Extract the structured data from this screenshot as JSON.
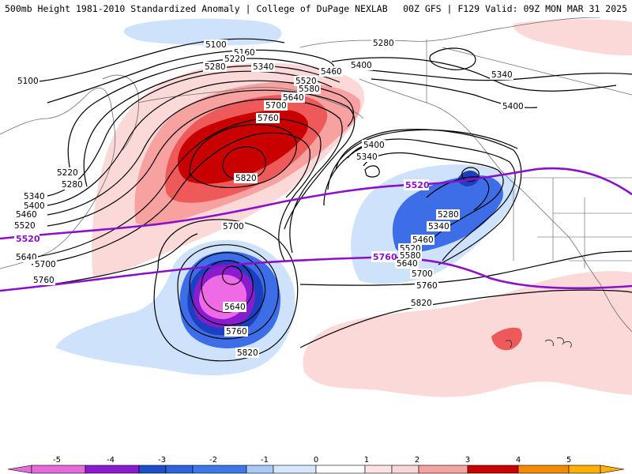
{
  "header": {
    "left_title": "500mb Height 1981-2010 Standardized Anomaly | College of DuPage NEXLAB",
    "right_title": "00Z GFS | F129 Valid: 09Z MON MAR 31 2025"
  },
  "contour_labels": [
    {
      "text": "5100",
      "id": "c5100-a"
    },
    {
      "text": "5100",
      "id": "c5100-b"
    },
    {
      "text": "5160",
      "id": "c5160"
    },
    {
      "text": "5220",
      "id": "c5220-a"
    },
    {
      "text": "5280",
      "id": "c5280-a"
    },
    {
      "text": "5340",
      "id": "c5340-a"
    },
    {
      "text": "5280",
      "id": "c5280-b"
    },
    {
      "text": "5400",
      "id": "c5400-a"
    },
    {
      "text": "5460",
      "id": "c5460-a"
    },
    {
      "text": "5520",
      "id": "c5520-a"
    },
    {
      "text": "5580",
      "id": "c5580-a"
    },
    {
      "text": "5640",
      "id": "c5640-a"
    },
    {
      "text": "5700",
      "id": "c5700-a"
    },
    {
      "text": "5760",
      "id": "c5760-a"
    },
    {
      "text": "5820",
      "id": "c5820-a"
    },
    {
      "text": "5340",
      "id": "c5340-b"
    },
    {
      "text": "5400",
      "id": "c5400-b"
    },
    {
      "text": "5400",
      "id": "c5400-c"
    },
    {
      "text": "5220",
      "id": "c5220-b"
    },
    {
      "text": "5280",
      "id": "c5280-c"
    },
    {
      "text": "5340",
      "id": "c5340-c"
    },
    {
      "text": "5400",
      "id": "c5400-d"
    },
    {
      "text": "5460",
      "id": "c5460-b"
    },
    {
      "text": "5520",
      "id": "c5520-b"
    },
    {
      "text": "5640",
      "id": "c5640-b"
    },
    {
      "text": "5700",
      "id": "c5700-b"
    },
    {
      "text": "5760",
      "id": "c5760-b"
    },
    {
      "text": "5700",
      "id": "c5700-c"
    },
    {
      "text": "5640",
      "id": "c5640-c"
    },
    {
      "text": "5760",
      "id": "c5760-c"
    },
    {
      "text": "5820",
      "id": "c5820-b"
    },
    {
      "text": "5280",
      "id": "c5280-d"
    },
    {
      "text": "5340",
      "id": "c5340-d"
    },
    {
      "text": "5460",
      "id": "c5460-c"
    },
    {
      "text": "5520",
      "id": "c5520-c"
    },
    {
      "text": "5580",
      "id": "c5580-b"
    },
    {
      "text": "5640",
      "id": "c5640-d"
    },
    {
      "text": "5700",
      "id": "c5700-d"
    },
    {
      "text": "5760",
      "id": "c5760-d"
    },
    {
      "text": "5820",
      "id": "c5820-c"
    },
    {
      "text": "5340",
      "id": "c5340-e"
    }
  ],
  "climo_labels": [
    {
      "text": "5520",
      "id": "g5520-a"
    },
    {
      "text": "5520",
      "id": "g5520-b"
    },
    {
      "text": "5760",
      "id": "g5760-a"
    }
  ],
  "legend": {
    "ticks": [
      "-5",
      "-4",
      "-3",
      "-2",
      "-1",
      "0",
      "1",
      "2",
      "3",
      "4",
      "5"
    ],
    "colors": [
      "#e46bd9",
      "#8a1ccf",
      "#1c4fc7",
      "#3d78e6",
      "#8fb8f2",
      "#d6e6fb",
      "#ffffff",
      "#fbd6d6",
      "#f4a3a3",
      "#e85c5c",
      "#c80000",
      "#f28a00",
      "#ffb000"
    ]
  },
  "colors": {
    "positive_1": "#fcd9d9",
    "positive_2": "#f7a1a1",
    "positive_3": "#ee5a5a",
    "positive_4": "#c80000",
    "negative_1": "#cfe2fb",
    "negative_2": "#8fb8f2",
    "negative_3": "#3d6ee8",
    "negative_4": "#1c3fbf",
    "negative_5": "#8a1ccf",
    "negative_6": "#ef6be6",
    "climo_line": "#8b10c8"
  }
}
